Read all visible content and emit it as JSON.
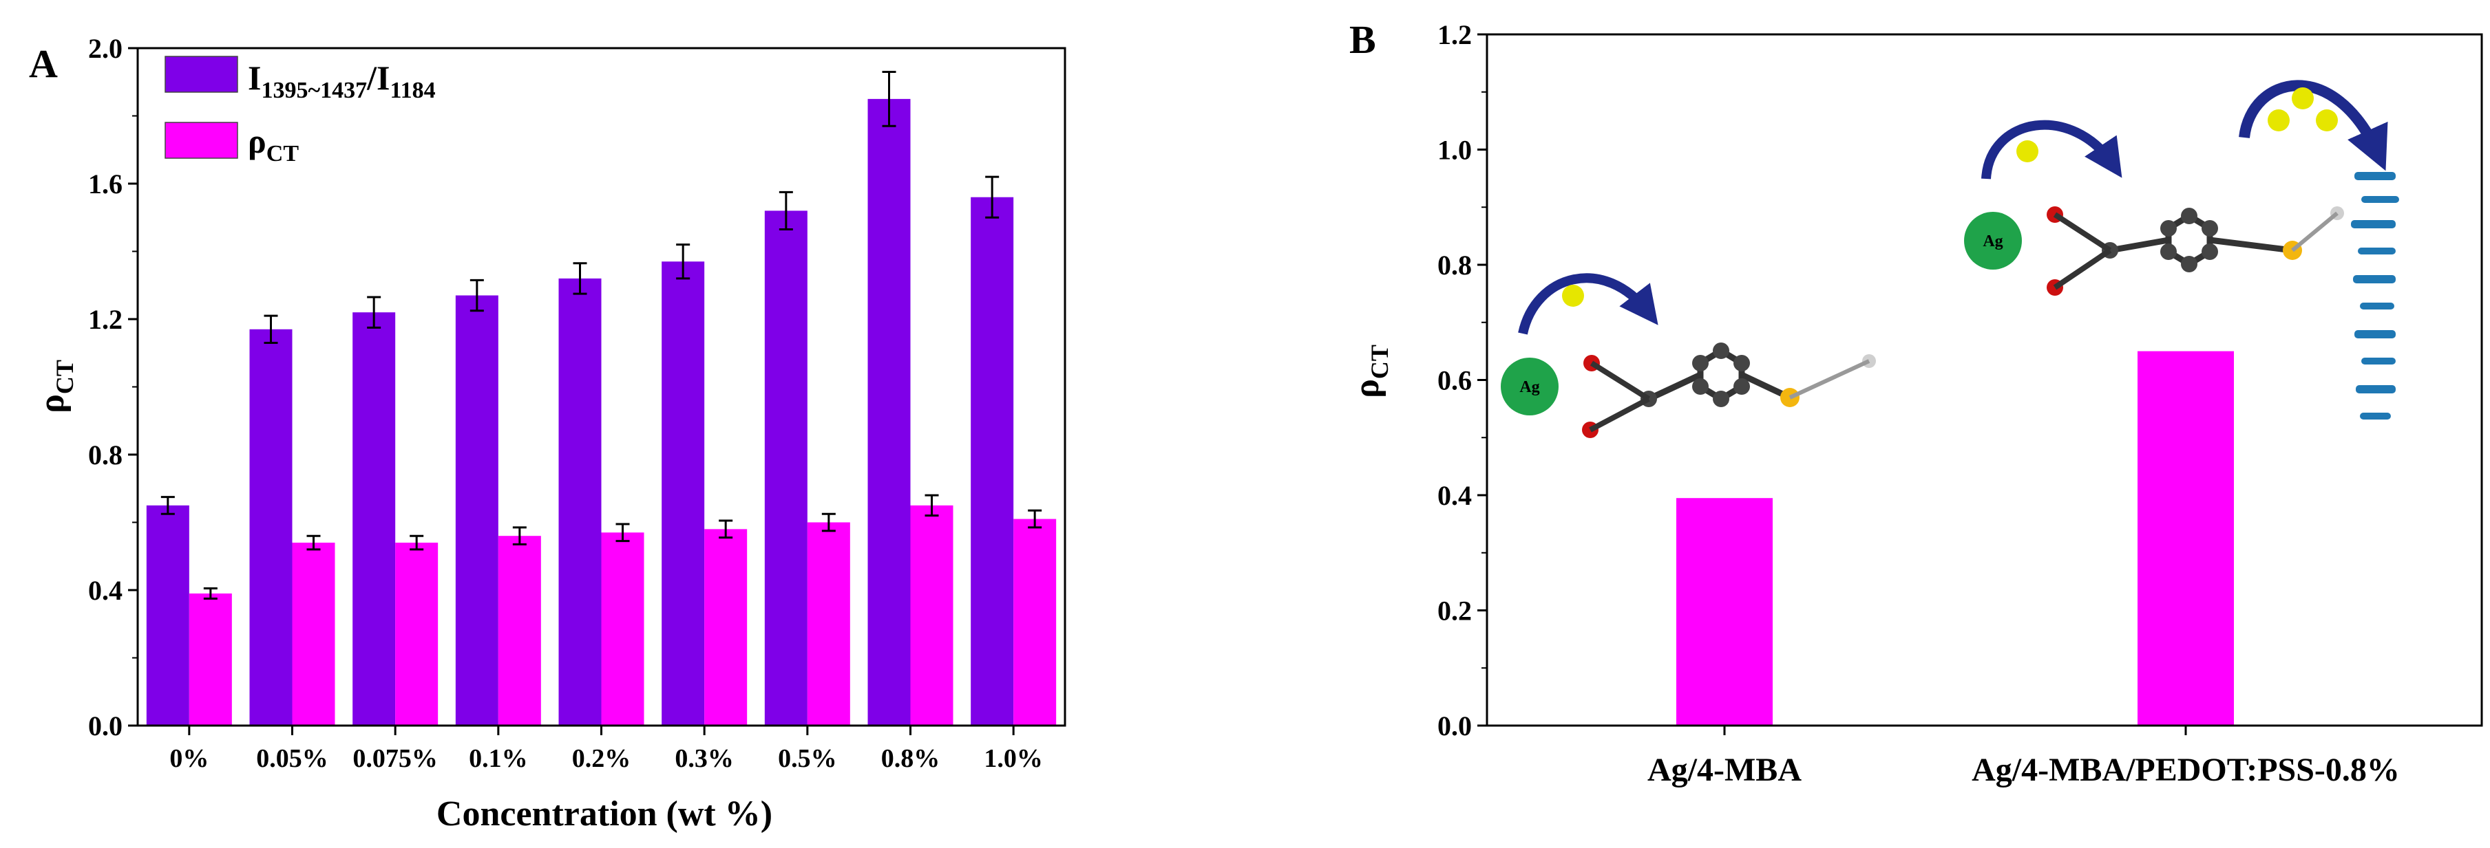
{
  "chart_data": [
    {
      "panel_label": "A",
      "type": "bar",
      "xlabel": "Concentration (wt %)",
      "ylabel": {
        "main": "ρ",
        "sub": "CT"
      },
      "ylim": [
        0.0,
        2.0
      ],
      "yticks": [
        "0.0",
        "0.4",
        "0.8",
        "1.2",
        "1.6",
        "2.0"
      ],
      "categories": [
        "0%",
        "0.05%",
        "0.075%",
        "0.1%",
        "0.2%",
        "0.3%",
        "0.5%",
        "0.8%",
        "1.0%"
      ],
      "legend_position": "top-left",
      "series": [
        {
          "name": "I1395~1437/I1184",
          "legend": {
            "a": "I",
            "a_sub": "1395~1437",
            "sep": "/I",
            "b_sub": "1184"
          },
          "color": "#7f00e8",
          "values": [
            0.65,
            1.17,
            1.22,
            1.27,
            1.32,
            1.37,
            1.52,
            1.85,
            1.56
          ],
          "errors": [
            0.025,
            0.04,
            0.045,
            0.045,
            0.045,
            0.05,
            0.055,
            0.08,
            0.06
          ]
        },
        {
          "name": "ρCT",
          "legend": {
            "main": "ρ",
            "sub": "CT"
          },
          "color": "#ff00ff",
          "values": [
            0.39,
            0.54,
            0.54,
            0.56,
            0.57,
            0.58,
            0.6,
            0.65,
            0.61
          ],
          "errors": [
            0.015,
            0.02,
            0.02,
            0.025,
            0.025,
            0.025,
            0.025,
            0.03,
            0.025
          ]
        }
      ]
    },
    {
      "panel_label": "B",
      "type": "bar",
      "xlabel": "",
      "ylabel": {
        "main": "ρ",
        "sub": "CT"
      },
      "ylim": [
        0.0,
        1.2
      ],
      "yticks": [
        "0.0",
        "0.2",
        "0.4",
        "0.6",
        "0.8",
        "1.0",
        "1.2"
      ],
      "categories": [
        "Ag/4-MBA",
        "Ag/4-MBA/PEDOT:PSS-0.8%"
      ],
      "values": [
        0.395,
        0.65
      ],
      "color": "#ff00ff",
      "annotations": {
        "ag_label": "Ag"
      }
    }
  ]
}
